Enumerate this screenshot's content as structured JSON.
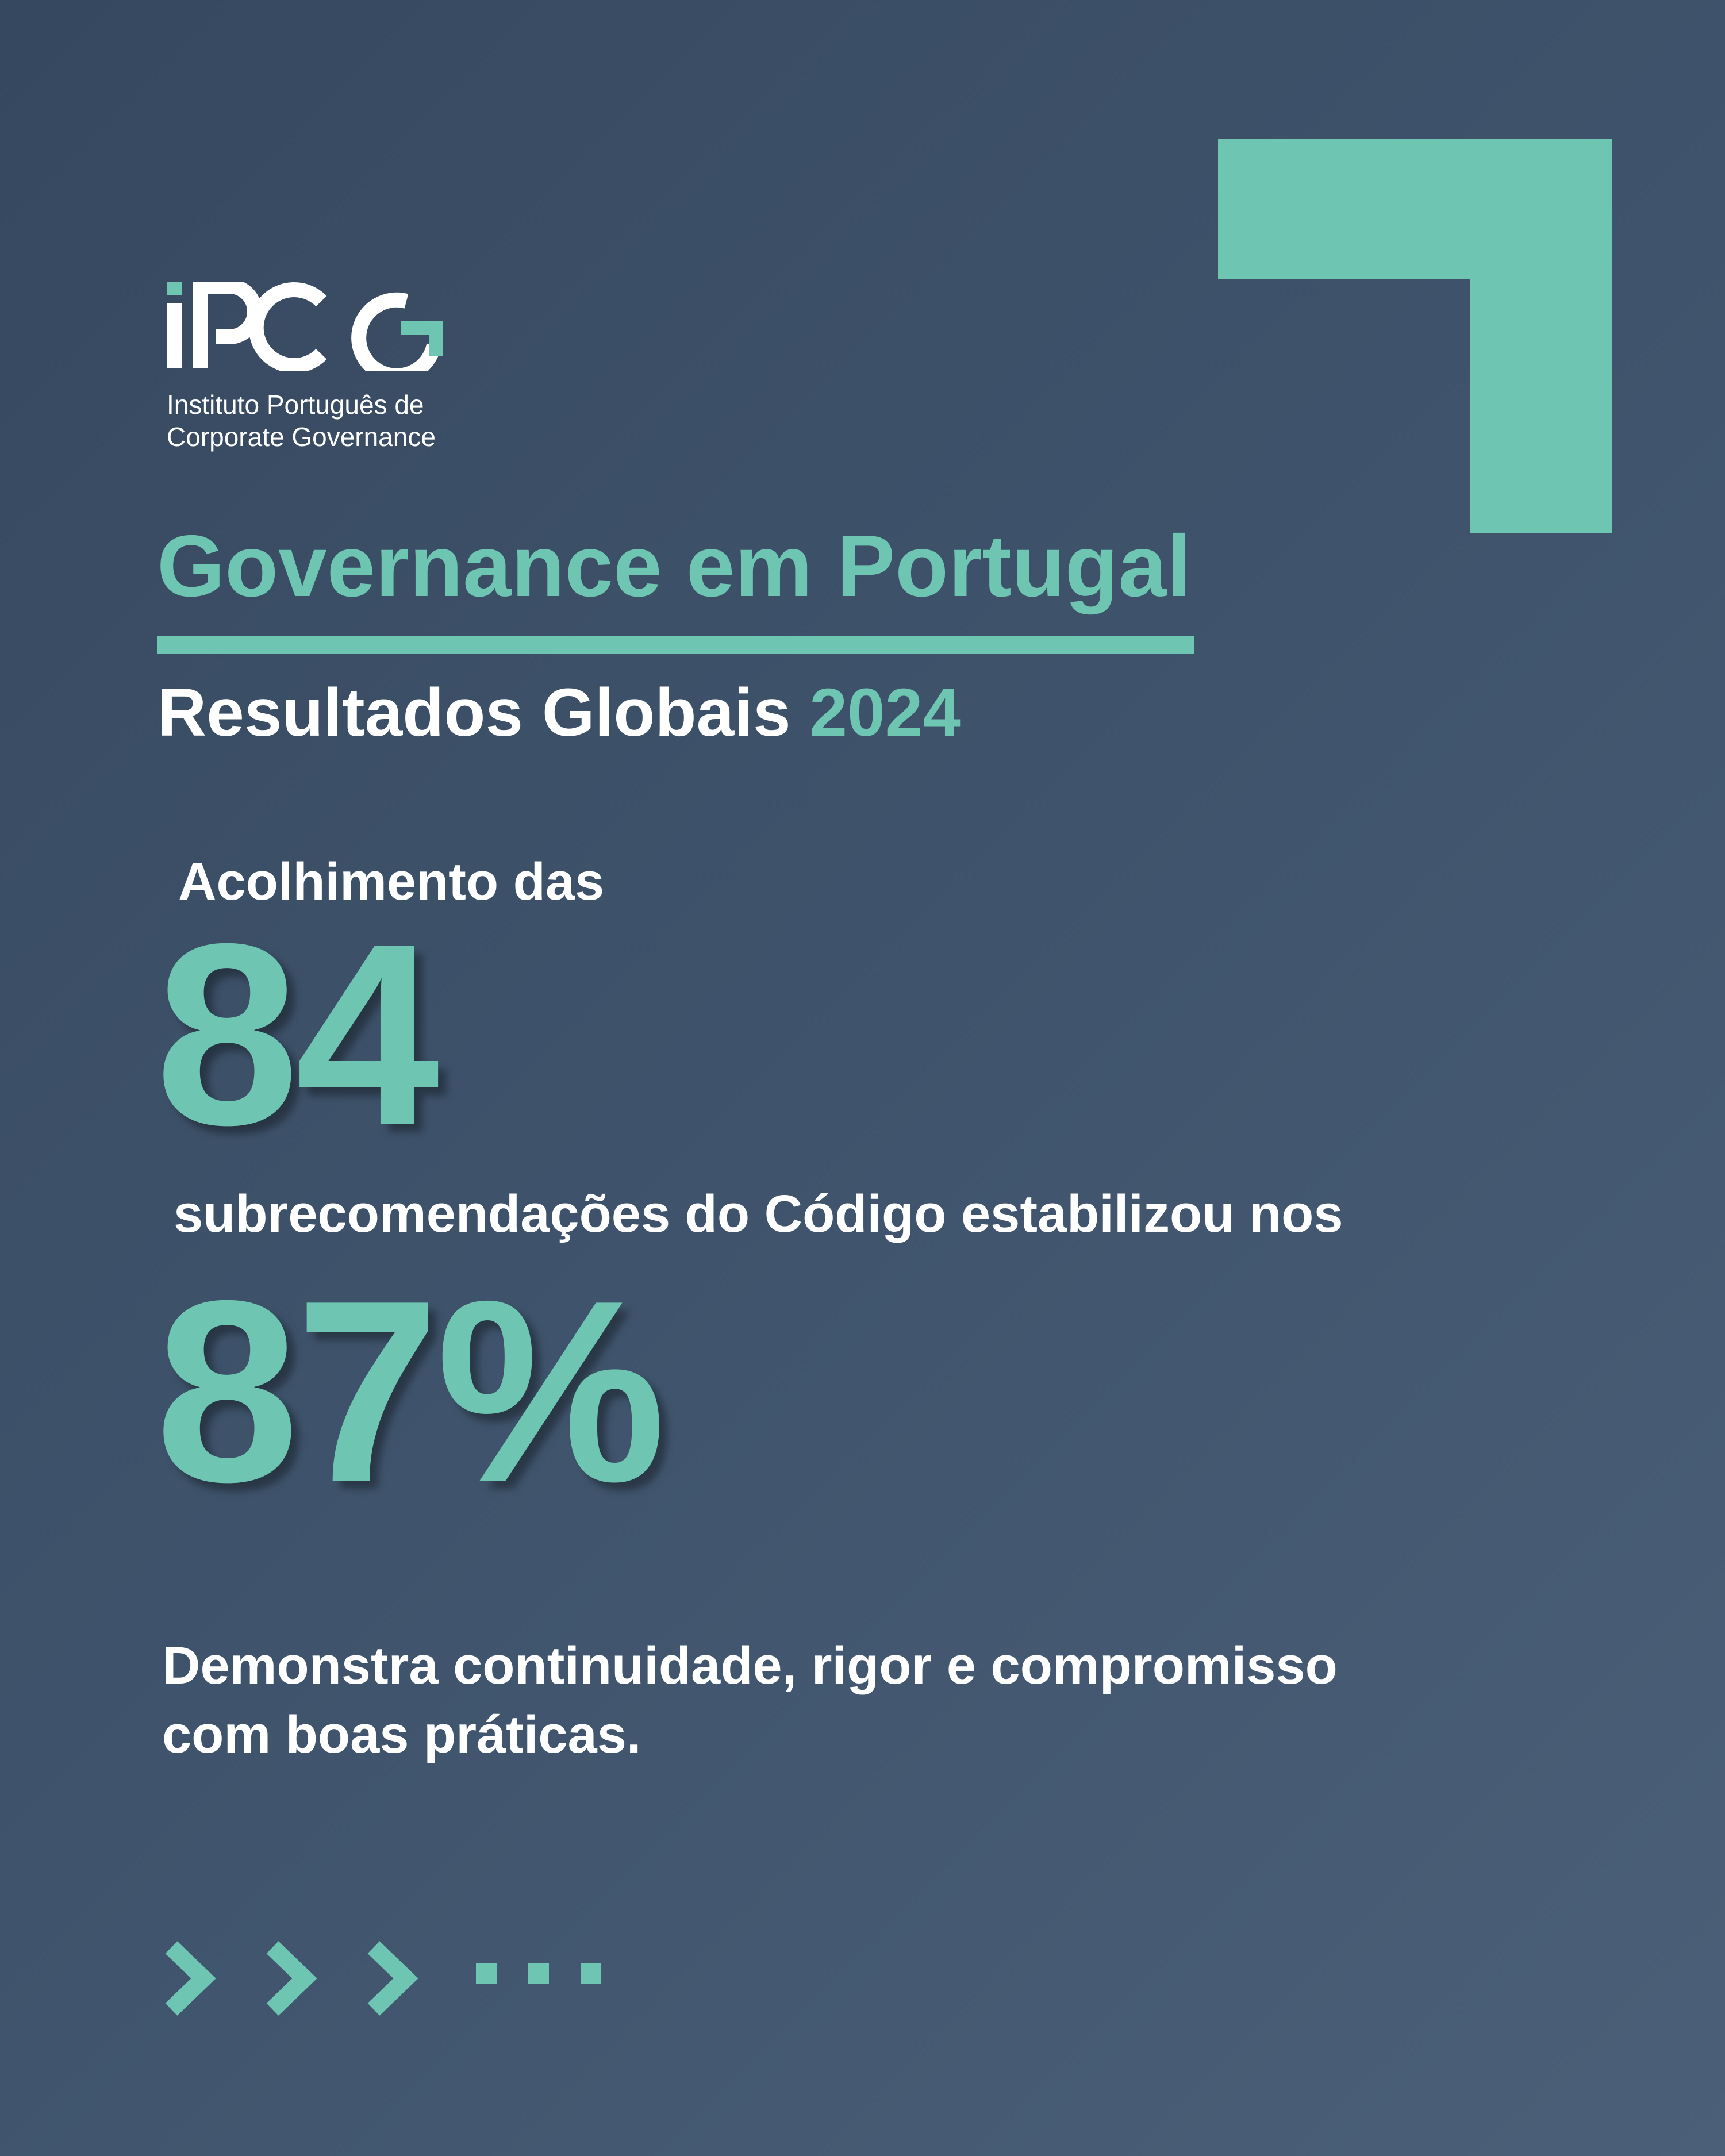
{
  "logo": {
    "wordmark": "iPCG",
    "subtitle_line1": "Instituto Português de",
    "subtitle_line2": "Corporate Governance"
  },
  "heading": {
    "title": "Governance em Portugal",
    "subtitle": "Resultados Globais",
    "year": "2024"
  },
  "stats": {
    "lead1": "Acolhimento das",
    "number1": "84",
    "lead2": "subrecomendações do Código estabilizou nos",
    "number2": "87%"
  },
  "body": {
    "line1": "Demonstra continuidade, rigor e compromisso",
    "line2": "com boas práticas."
  },
  "colors": {
    "accent": "#6ec5b1",
    "background": "#3f546c",
    "text": "#ffffff"
  },
  "decoration": {
    "icons": [
      "chevron-right-icon",
      "chevron-right-icon",
      "chevron-right-icon",
      "ellipsis-icon"
    ]
  }
}
